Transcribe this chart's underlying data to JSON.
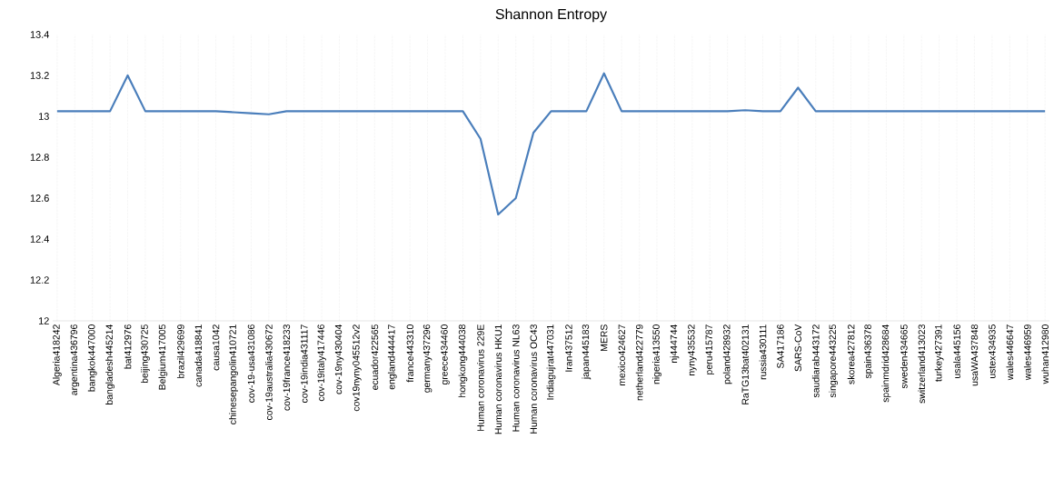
{
  "chart_data": {
    "type": "line",
    "title": "Shannon Entropy",
    "categories": [
      "Algeria418242",
      "argentina436796",
      "bangkok447000",
      "bangladesh445214",
      "bat412976",
      "beijing430725",
      "Belgium417005",
      "brazil429699",
      "canada418841",
      "causa1042",
      "chinesepangolin410721",
      "cov-19-usa431086",
      "cov-19australia430672",
      "cov-19france418233",
      "cov-19india431117",
      "cov-19italy417446",
      "cov-19ny430404",
      "cov19nyny045512v2",
      "ecuador422565",
      "england444417",
      "france443310",
      "germany437296",
      "greece434460",
      "hongkong444038",
      "Human coronavirus 229E",
      "Human coronavirus HKU1",
      "Human coronavirus NL63",
      "Human coronavirus OC43",
      "Indiagujrat447031",
      "Iran437512",
      "japan445183",
      "MERS",
      "mexico424627",
      "netherland422779",
      "nigeria413550",
      "nj444744",
      "nyny435532",
      "peru415787",
      "poland428932",
      "RaTG13bat402131",
      "russia430111",
      "SA417186",
      "SARS-CoV",
      "saudiarab443172",
      "singapore443225",
      "skorea427812",
      "spain436378",
      "spainmdrid428684",
      "sweden434665",
      "switzerland413023",
      "turkey427391",
      "usala445156",
      "usaWA437848",
      "ustex434935",
      "wales446647",
      "wales446959",
      "wuhan412980"
    ],
    "series": [
      {
        "color": "#4a7ebb",
        "values": [
          13.025,
          13.025,
          13.025,
          13.025,
          13.2,
          13.025,
          13.025,
          13.025,
          13.025,
          13.025,
          13.02,
          13.015,
          13.01,
          13.025,
          13.025,
          13.025,
          13.025,
          13.025,
          13.025,
          13.025,
          13.025,
          13.025,
          13.025,
          13.025,
          12.89,
          12.52,
          12.6,
          12.92,
          13.025,
          13.025,
          13.025,
          13.21,
          13.025,
          13.025,
          13.025,
          13.025,
          13.025,
          13.025,
          13.025,
          13.03,
          13.025,
          13.025,
          13.14,
          13.025,
          13.025,
          13.025,
          13.025,
          13.025,
          13.025,
          13.025,
          13.025,
          13.025,
          13.025,
          13.025,
          13.025,
          13.025,
          13.025
        ]
      }
    ],
    "ylim": [
      12,
      13.4
    ],
    "yticks": [
      12,
      12.2,
      12.4,
      12.6,
      12.8,
      13,
      13.2,
      13.4
    ],
    "grid": "x",
    "marker": "none",
    "line_style": "solid"
  }
}
